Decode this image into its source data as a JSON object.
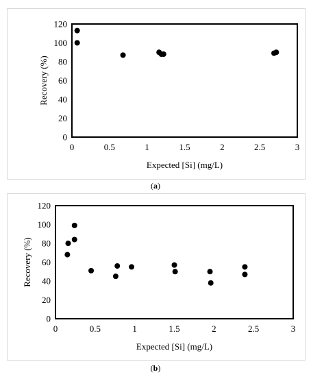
{
  "chart_data": [
    {
      "type": "scatter",
      "panel": "a",
      "xlabel": "Expected [Si] (mg/L)",
      "ylabel": "Recovery (%)",
      "xlim": [
        0,
        3
      ],
      "ylim": [
        0,
        120
      ],
      "xticks": [
        0,
        0.5,
        1,
        1.5,
        2,
        2.5,
        3
      ],
      "yticks": [
        0,
        20,
        40,
        60,
        80,
        100,
        120
      ],
      "xtick_labels": [
        "0",
        "0.5",
        "1",
        "1.5",
        "2",
        "2.5",
        "3"
      ],
      "ytick_labels": [
        "0",
        "20",
        "40",
        "60",
        "80",
        "100",
        "120"
      ],
      "grid": false,
      "marker_color": "#000000",
      "points": [
        {
          "x": 0.07,
          "y": 113
        },
        {
          "x": 0.07,
          "y": 100
        },
        {
          "x": 0.68,
          "y": 87
        },
        {
          "x": 1.16,
          "y": 90
        },
        {
          "x": 1.22,
          "y": 88
        },
        {
          "x": 1.19,
          "y": 88
        },
        {
          "x": 2.69,
          "y": 89
        },
        {
          "x": 2.72,
          "y": 90
        }
      ]
    },
    {
      "type": "scatter",
      "panel": "b",
      "xlabel": "Expected [Si] (mg/L)",
      "ylabel": "Recovery (%)",
      "xlim": [
        0,
        3
      ],
      "ylim": [
        0,
        120
      ],
      "xticks": [
        0,
        0.5,
        1,
        1.5,
        2,
        2.5,
        3
      ],
      "yticks": [
        0,
        20,
        40,
        60,
        80,
        100,
        120
      ],
      "xtick_labels": [
        "0",
        "0.5",
        "1",
        "1.5",
        "2",
        "2.5",
        "3"
      ],
      "ytick_labels": [
        "0",
        "20",
        "40",
        "60",
        "80",
        "100",
        "120"
      ],
      "grid": false,
      "marker_color": "#000000",
      "points": [
        {
          "x": 0.24,
          "y": 99
        },
        {
          "x": 0.24,
          "y": 84
        },
        {
          "x": 0.16,
          "y": 80
        },
        {
          "x": 0.15,
          "y": 68
        },
        {
          "x": 0.45,
          "y": 51
        },
        {
          "x": 0.78,
          "y": 56
        },
        {
          "x": 0.76,
          "y": 45
        },
        {
          "x": 0.96,
          "y": 55
        },
        {
          "x": 1.5,
          "y": 57
        },
        {
          "x": 1.51,
          "y": 50
        },
        {
          "x": 1.95,
          "y": 50
        },
        {
          "x": 1.96,
          "y": 38
        },
        {
          "x": 2.39,
          "y": 55
        },
        {
          "x": 2.39,
          "y": 47
        }
      ]
    }
  ],
  "captions": {
    "a_open": "(",
    "a_letter": "a",
    "a_close": ")",
    "b_open": "(",
    "b_letter": "b",
    "b_close": ")"
  }
}
